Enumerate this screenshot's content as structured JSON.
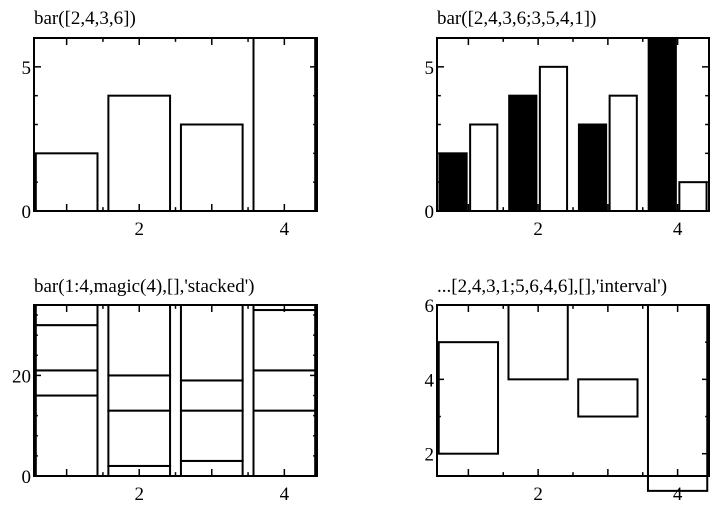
{
  "chart_data": [
    {
      "type": "bar",
      "title": "bar([2,4,3,6])",
      "x": [
        1,
        2,
        3,
        4
      ],
      "series": [
        {
          "values": [
            2,
            4,
            3,
            6
          ],
          "color": "#ffffff"
        }
      ],
      "xlim": [
        0.55,
        4.45
      ],
      "ylim": [
        0,
        6
      ],
      "xticks": [
        2,
        4
      ],
      "yticks": [
        0,
        5
      ],
      "grid": false
    },
    {
      "type": "bar",
      "title": "bar([2,4,3,6;3,5,4,1])",
      "x": [
        1,
        2,
        3,
        4
      ],
      "series": [
        {
          "values": [
            2,
            4,
            3,
            6
          ],
          "color": "#000000"
        },
        {
          "values": [
            3,
            5,
            4,
            1
          ],
          "color": "#ffffff"
        }
      ],
      "xlim": [
        0.55,
        4.45
      ],
      "ylim": [
        0,
        6
      ],
      "xticks": [
        2,
        4
      ],
      "yticks": [
        0,
        5
      ],
      "grid": false
    },
    {
      "type": "bar",
      "subtype": "stacked",
      "title": "bar(1:4,magic(4),[],'stacked')",
      "x": [
        1,
        2,
        3,
        4
      ],
      "series": [
        {
          "values": [
            16,
            2,
            3,
            13
          ]
        },
        {
          "values": [
            5,
            11,
            10,
            8
          ]
        },
        {
          "values": [
            9,
            7,
            6,
            12
          ]
        },
        {
          "values": [
            4,
            14,
            15,
            1
          ]
        }
      ],
      "xlim": [
        0.55,
        4.45
      ],
      "ylim": [
        0,
        34
      ],
      "xticks": [
        2,
        4
      ],
      "yticks": [
        0,
        20
      ],
      "grid": false
    },
    {
      "type": "bar",
      "subtype": "interval",
      "title": "...[2,4,3,1;5,6,4,6],[],'interval')",
      "x": [
        1,
        2,
        3,
        4
      ],
      "intervals": [
        [
          2,
          5
        ],
        [
          4,
          6
        ],
        [
          3,
          4
        ],
        [
          1,
          6
        ]
      ],
      "xlim": [
        0.55,
        4.45
      ],
      "ylim": [
        1.4,
        6
      ],
      "xticks": [
        2,
        4
      ],
      "yticks": [
        2,
        4,
        6
      ],
      "grid": false
    }
  ]
}
